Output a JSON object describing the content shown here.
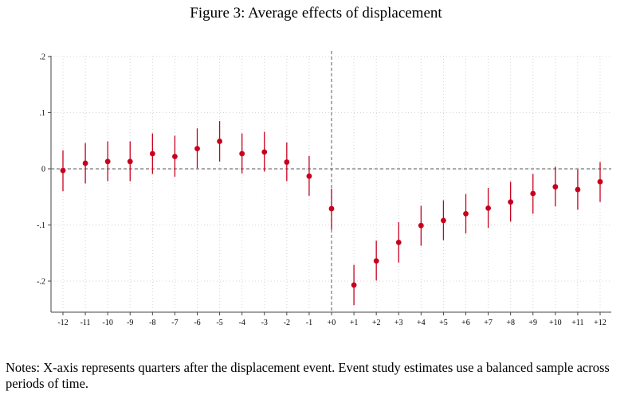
{
  "title": "Figure 3: Average effects of displacement",
  "notes": "Notes: X-axis represents quarters after the displacement event. Event study estimates use a balanced sample across periods of time.",
  "chart_data": {
    "type": "scatter",
    "title": "Figure 3: Average effects of displacement",
    "xlabel": "",
    "ylabel": "",
    "categories": [
      "-12",
      "-11",
      "-10",
      "-9",
      "-8",
      "-7",
      "-6",
      "-5",
      "-4",
      "-3",
      "-2",
      "-1",
      "+0",
      "+1",
      "+2",
      "+3",
      "+4",
      "+5",
      "+6",
      "+7",
      "+8",
      "+9",
      "+10",
      "+11",
      "+12"
    ],
    "x": [
      -12,
      -11,
      -10,
      -9,
      -8,
      -7,
      -6,
      -5,
      -4,
      -3,
      -2,
      -1,
      0,
      1,
      2,
      3,
      4,
      5,
      6,
      7,
      8,
      9,
      10,
      11,
      12
    ],
    "estimate": [
      -0.003,
      0.01,
      0.013,
      0.013,
      0.027,
      0.022,
      0.036,
      0.049,
      0.027,
      0.03,
      0.012,
      -0.013,
      -0.071,
      -0.207,
      -0.164,
      -0.131,
      -0.101,
      -0.092,
      -0.08,
      -0.07,
      -0.059,
      -0.044,
      -0.032,
      -0.037,
      -0.023
    ],
    "ci_low": [
      -0.04,
      -0.026,
      -0.022,
      -0.022,
      -0.009,
      -0.014,
      0.001,
      0.013,
      -0.008,
      -0.005,
      -0.022,
      -0.048,
      -0.108,
      -0.243,
      -0.199,
      -0.167,
      -0.137,
      -0.127,
      -0.115,
      -0.105,
      -0.094,
      -0.08,
      -0.067,
      -0.073,
      -0.059
    ],
    "ci_high": [
      0.033,
      0.046,
      0.049,
      0.049,
      0.063,
      0.059,
      0.072,
      0.085,
      0.063,
      0.066,
      0.047,
      0.023,
      -0.035,
      -0.171,
      -0.128,
      -0.095,
      -0.066,
      -0.056,
      -0.045,
      -0.034,
      -0.023,
      -0.009,
      0.004,
      -0.001,
      0.012
    ],
    "y_ticks": [
      0.2,
      0.1,
      0,
      -0.1,
      -0.2
    ],
    "y_tick_labels": [
      ".2",
      ".1",
      "0",
      "-.1",
      "-.2"
    ],
    "ylim": [
      -0.255,
      0.2
    ],
    "xlim": [
      -12,
      12
    ],
    "reference_lines": {
      "x": 0,
      "y": 0
    },
    "grid": true,
    "colors": {
      "marker": "#c8001e",
      "ci": "#c8001e",
      "reference": "#777777",
      "grid": "#d4d4d4"
    }
  }
}
